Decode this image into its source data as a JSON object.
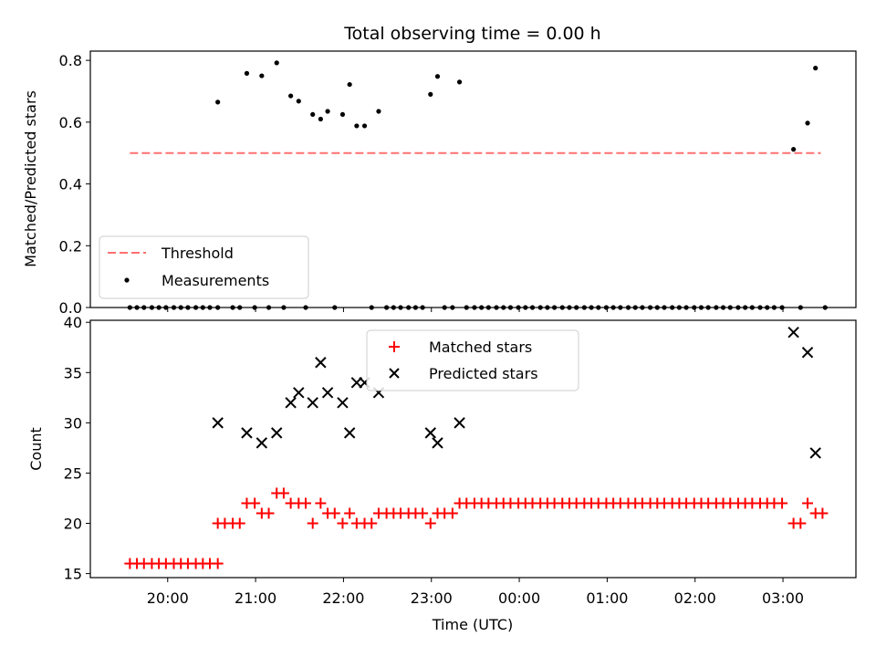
{
  "chart_data": [
    {
      "type": "scatter",
      "title": "Total observing time = 0.00 h",
      "xlabel": "",
      "ylabel": "Matched/Predicted stars",
      "ylim": [
        0,
        0.83
      ],
      "yticks": [
        0.0,
        0.2,
        0.4,
        0.6,
        0.8
      ],
      "ytick_labels": [
        "0.0",
        "0.2",
        "0.4",
        "0.6",
        "0.8"
      ],
      "x_unit": "hours since 00:00 UTC",
      "xlim": [
        -4.88,
        3.83
      ],
      "legend": {
        "position": "lower-left",
        "entries": [
          "Threshold",
          "Measurements"
        ]
      },
      "threshold": {
        "name": "Threshold",
        "value": 0.5,
        "x_range": [
          -4.43,
          3.43
        ],
        "color": "#ff7070",
        "style": "dashed"
      },
      "series": [
        {
          "name": "Measurements",
          "color": "#000000",
          "points": [
            [
              -4.43,
              0
            ],
            [
              -4.35,
              0
            ],
            [
              -4.27,
              0
            ],
            [
              -4.18,
              0
            ],
            [
              -4.1,
              0
            ],
            [
              -4.02,
              0
            ],
            [
              -3.93,
              0
            ],
            [
              -3.85,
              0
            ],
            [
              -3.77,
              0
            ],
            [
              -3.68,
              0
            ],
            [
              -3.6,
              0
            ],
            [
              -3.52,
              0
            ],
            [
              -3.43,
              0
            ],
            [
              -3.43,
              0.665
            ],
            [
              -3.26,
              0
            ],
            [
              -3.18,
              0
            ],
            [
              -3.1,
              0.758
            ],
            [
              -3.01,
              0
            ],
            [
              -2.93,
              0.75
            ],
            [
              -2.85,
              0
            ],
            [
              -2.76,
              0.792
            ],
            [
              -2.68,
              0
            ],
            [
              -2.6,
              0.685
            ],
            [
              -2.51,
              0.668
            ],
            [
              -2.43,
              0
            ],
            [
              -2.35,
              0.625
            ],
            [
              -2.26,
              0.61
            ],
            [
              -2.18,
              0.635
            ],
            [
              -2.1,
              0
            ],
            [
              -2.01,
              0.625
            ],
            [
              -1.93,
              0.722
            ],
            [
              -1.85,
              0.588
            ],
            [
              -1.76,
              0.588
            ],
            [
              -1.68,
              0
            ],
            [
              -1.6,
              0.635
            ],
            [
              -1.51,
              0
            ],
            [
              -1.43,
              0
            ],
            [
              -1.35,
              0
            ],
            [
              -1.26,
              0
            ],
            [
              -1.18,
              0
            ],
            [
              -1.1,
              0
            ],
            [
              -1.01,
              0.69
            ],
            [
              -0.93,
              0.748
            ],
            [
              -0.85,
              0
            ],
            [
              -0.76,
              0
            ],
            [
              -0.68,
              0.73
            ],
            [
              -0.6,
              0
            ],
            [
              -0.51,
              0
            ],
            [
              -0.43,
              0
            ],
            [
              -0.35,
              0
            ],
            [
              -0.26,
              0
            ],
            [
              -0.18,
              0
            ],
            [
              -0.1,
              0
            ],
            [
              -0.01,
              0
            ],
            [
              0.07,
              0
            ],
            [
              0.15,
              0
            ],
            [
              0.24,
              0
            ],
            [
              0.32,
              0
            ],
            [
              0.4,
              0
            ],
            [
              0.49,
              0
            ],
            [
              0.57,
              0
            ],
            [
              0.65,
              0
            ],
            [
              0.74,
              0
            ],
            [
              0.82,
              0
            ],
            [
              0.9,
              0
            ],
            [
              0.99,
              0
            ],
            [
              1.07,
              0
            ],
            [
              1.15,
              0
            ],
            [
              1.24,
              0
            ],
            [
              1.32,
              0
            ],
            [
              1.4,
              0
            ],
            [
              1.49,
              0
            ],
            [
              1.57,
              0
            ],
            [
              1.65,
              0
            ],
            [
              1.74,
              0
            ],
            [
              1.82,
              0
            ],
            [
              1.9,
              0
            ],
            [
              1.99,
              0
            ],
            [
              2.07,
              0
            ],
            [
              2.15,
              0
            ],
            [
              2.24,
              0
            ],
            [
              2.32,
              0
            ],
            [
              2.4,
              0
            ],
            [
              2.49,
              0
            ],
            [
              2.57,
              0
            ],
            [
              2.65,
              0
            ],
            [
              2.74,
              0
            ],
            [
              2.82,
              0
            ],
            [
              2.9,
              0
            ],
            [
              2.99,
              0
            ],
            [
              3.12,
              0.512
            ],
            [
              3.2,
              0
            ],
            [
              3.28,
              0.597
            ],
            [
              3.37,
              0.775
            ],
            [
              3.48,
              0
            ]
          ]
        }
      ]
    },
    {
      "type": "scatter",
      "title": "",
      "xlabel": "Time (UTC)",
      "ylabel": "Count",
      "ylim": [
        14.6,
        40.2
      ],
      "yticks": [
        15,
        20,
        25,
        30,
        35,
        40
      ],
      "ytick_labels": [
        "15",
        "20",
        "25",
        "30",
        "35",
        "40"
      ],
      "x_unit": "hours since 00:00 UTC",
      "xlim": [
        -4.88,
        3.83
      ],
      "xticks": [
        -4,
        -3,
        -2,
        -1,
        0,
        1,
        2,
        3
      ],
      "xtick_labels": [
        "20:00",
        "21:00",
        "22:00",
        "23:00",
        "00:00",
        "01:00",
        "02:00",
        "03:00"
      ],
      "legend": {
        "position": "upper-center",
        "entries": [
          "Matched stars",
          "Predicted stars"
        ]
      },
      "series": [
        {
          "name": "Matched stars",
          "marker": "plus",
          "color": "#ff0000",
          "points": [
            [
              -4.43,
              16
            ],
            [
              -4.35,
              16
            ],
            [
              -4.27,
              16
            ],
            [
              -4.18,
              16
            ],
            [
              -4.1,
              16
            ],
            [
              -4.02,
              16
            ],
            [
              -3.93,
              16
            ],
            [
              -3.85,
              16
            ],
            [
              -3.77,
              16
            ],
            [
              -3.68,
              16
            ],
            [
              -3.6,
              16
            ],
            [
              -3.52,
              16
            ],
            [
              -3.43,
              16
            ],
            [
              -3.43,
              20
            ],
            [
              -3.35,
              20
            ],
            [
              -3.26,
              20
            ],
            [
              -3.18,
              20
            ],
            [
              -3.1,
              22
            ],
            [
              -3.01,
              22
            ],
            [
              -2.93,
              21
            ],
            [
              -2.85,
              21
            ],
            [
              -2.76,
              23
            ],
            [
              -2.68,
              23
            ],
            [
              -2.6,
              22
            ],
            [
              -2.51,
              22
            ],
            [
              -2.43,
              22
            ],
            [
              -2.35,
              20
            ],
            [
              -2.26,
              22
            ],
            [
              -2.18,
              21
            ],
            [
              -2.1,
              21
            ],
            [
              -2.01,
              20
            ],
            [
              -1.93,
              21
            ],
            [
              -1.85,
              20
            ],
            [
              -1.76,
              20
            ],
            [
              -1.68,
              20
            ],
            [
              -1.6,
              21
            ],
            [
              -1.51,
              21
            ],
            [
              -1.43,
              21
            ],
            [
              -1.35,
              21
            ],
            [
              -1.26,
              21
            ],
            [
              -1.18,
              21
            ],
            [
              -1.1,
              21
            ],
            [
              -1.01,
              20
            ],
            [
              -0.93,
              21
            ],
            [
              -0.85,
              21
            ],
            [
              -0.76,
              21
            ],
            [
              -0.68,
              22
            ],
            [
              -0.6,
              22
            ],
            [
              -0.51,
              22
            ],
            [
              -0.43,
              22
            ],
            [
              -0.35,
              22
            ],
            [
              -0.26,
              22
            ],
            [
              -0.18,
              22
            ],
            [
              -0.1,
              22
            ],
            [
              -0.01,
              22
            ],
            [
              0.07,
              22
            ],
            [
              0.15,
              22
            ],
            [
              0.24,
              22
            ],
            [
              0.32,
              22
            ],
            [
              0.4,
              22
            ],
            [
              0.49,
              22
            ],
            [
              0.57,
              22
            ],
            [
              0.65,
              22
            ],
            [
              0.74,
              22
            ],
            [
              0.82,
              22
            ],
            [
              0.9,
              22
            ],
            [
              0.99,
              22
            ],
            [
              1.07,
              22
            ],
            [
              1.15,
              22
            ],
            [
              1.24,
              22
            ],
            [
              1.32,
              22
            ],
            [
              1.4,
              22
            ],
            [
              1.49,
              22
            ],
            [
              1.57,
              22
            ],
            [
              1.65,
              22
            ],
            [
              1.74,
              22
            ],
            [
              1.82,
              22
            ],
            [
              1.9,
              22
            ],
            [
              1.99,
              22
            ],
            [
              2.07,
              22
            ],
            [
              2.15,
              22
            ],
            [
              2.24,
              22
            ],
            [
              2.32,
              22
            ],
            [
              2.4,
              22
            ],
            [
              2.49,
              22
            ],
            [
              2.57,
              22
            ],
            [
              2.65,
              22
            ],
            [
              2.74,
              22
            ],
            [
              2.82,
              22
            ],
            [
              2.9,
              22
            ],
            [
              2.99,
              22
            ],
            [
              3.12,
              20
            ],
            [
              3.2,
              20
            ],
            [
              3.28,
              22
            ],
            [
              3.37,
              21
            ],
            [
              3.45,
              21
            ]
          ]
        },
        {
          "name": "Predicted stars",
          "marker": "x",
          "color": "#000000",
          "points": [
            [
              -3.43,
              30
            ],
            [
              -3.1,
              29
            ],
            [
              -2.93,
              28
            ],
            [
              -2.76,
              29
            ],
            [
              -2.6,
              32
            ],
            [
              -2.51,
              33
            ],
            [
              -2.35,
              32
            ],
            [
              -2.26,
              36
            ],
            [
              -2.18,
              33
            ],
            [
              -2.01,
              32
            ],
            [
              -1.93,
              29
            ],
            [
              -1.85,
              34
            ],
            [
              -1.76,
              34
            ],
            [
              -1.6,
              33
            ],
            [
              -1.01,
              29
            ],
            [
              -0.93,
              28
            ],
            [
              -0.68,
              30
            ],
            [
              3.12,
              39
            ],
            [
              3.28,
              37
            ],
            [
              3.37,
              27
            ]
          ]
        }
      ]
    }
  ]
}
